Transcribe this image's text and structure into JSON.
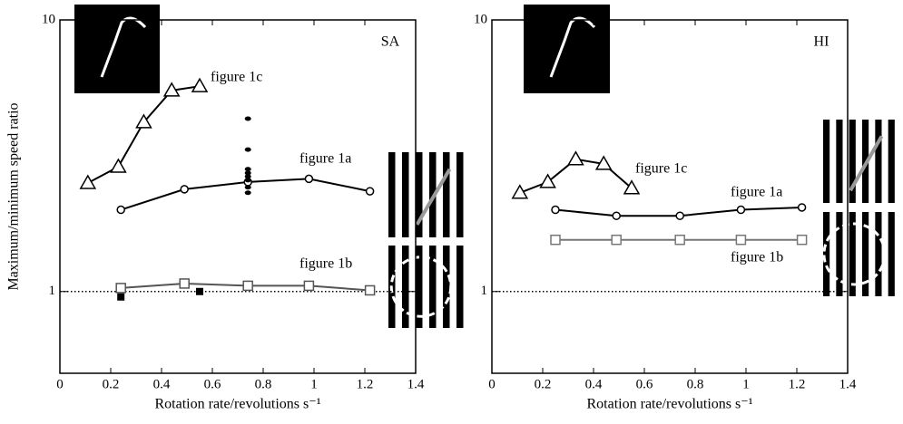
{
  "chart_data": [
    {
      "type": "line",
      "panel_label": "SA",
      "y_label": "Maximum/minimum speed ratio",
      "x_label": "Rotation rate/revolutions s⁻¹",
      "xlim": [
        0,
        1.4
      ],
      "xticks": [
        0,
        0.2,
        0.4,
        0.6,
        0.8,
        1,
        1.2,
        1.4
      ],
      "ylim": [
        0.5,
        10
      ],
      "yticks": [
        1,
        10
      ],
      "log_y": true,
      "reference_line": 1,
      "series": [
        {
          "name": "figure 1c",
          "marker": "triangle",
          "color": "#000000",
          "x": [
            0.11,
            0.23,
            0.33,
            0.44,
            0.55
          ],
          "values": [
            2.51,
            2.88,
            4.2,
            5.5,
            5.7
          ]
        },
        {
          "name": "figure 1a",
          "marker": "circle",
          "color": "#000000",
          "x": [
            0.24,
            0.49,
            0.74,
            0.98,
            1.22
          ],
          "values": [
            2.0,
            2.38,
            2.53,
            2.6,
            2.34
          ]
        },
        {
          "name": "figure 1b",
          "marker": "square",
          "color": "#555555",
          "x": [
            0.24,
            0.49,
            0.74,
            0.98,
            1.22
          ],
          "values": [
            1.03,
            1.07,
            1.05,
            1.05,
            1.01
          ]
        },
        {
          "marker": "filled-square",
          "line": false,
          "color": "#000000",
          "x": [
            0.24,
            0.55
          ],
          "values": [
            0.955,
            1.0
          ]
        },
        {
          "marker": "filled-circle",
          "line": false,
          "color": "#000000",
          "x": [
            0.74,
            0.74,
            0.74,
            0.74,
            0.74,
            0.74,
            0.74,
            0.74
          ],
          "values": [
            4.33,
            3.33,
            2.82,
            2.73,
            2.65,
            2.57,
            2.42,
            2.31
          ]
        }
      ]
    },
    {
      "type": "line",
      "panel_label": "HI",
      "x_label": "Rotation rate/revolutions s⁻¹",
      "xlim": [
        0,
        1.4
      ],
      "xticks": [
        0,
        0.2,
        0.4,
        0.6,
        0.8,
        1,
        1.2,
        1.4
      ],
      "ylim": [
        0.5,
        10
      ],
      "yticks": [
        1,
        10
      ],
      "log_y": true,
      "reference_line": 1,
      "series": [
        {
          "name": "figure 1c",
          "marker": "triangle",
          "color": "#000000",
          "x": [
            0.11,
            0.22,
            0.33,
            0.44,
            0.55
          ],
          "values": [
            2.31,
            2.53,
            3.07,
            2.95,
            2.4
          ]
        },
        {
          "name": "figure 1a",
          "marker": "circle",
          "color": "#000000",
          "x": [
            0.25,
            0.49,
            0.74,
            0.98,
            1.22
          ],
          "values": [
            2.0,
            1.9,
            1.9,
            2.0,
            2.04
          ]
        },
        {
          "name": "figure 1b",
          "marker": "square",
          "color": "#777777",
          "x": [
            0.25,
            0.49,
            0.74,
            0.98,
            1.22
          ],
          "values": [
            1.55,
            1.55,
            1.55,
            1.55,
            1.55
          ]
        }
      ]
    }
  ]
}
